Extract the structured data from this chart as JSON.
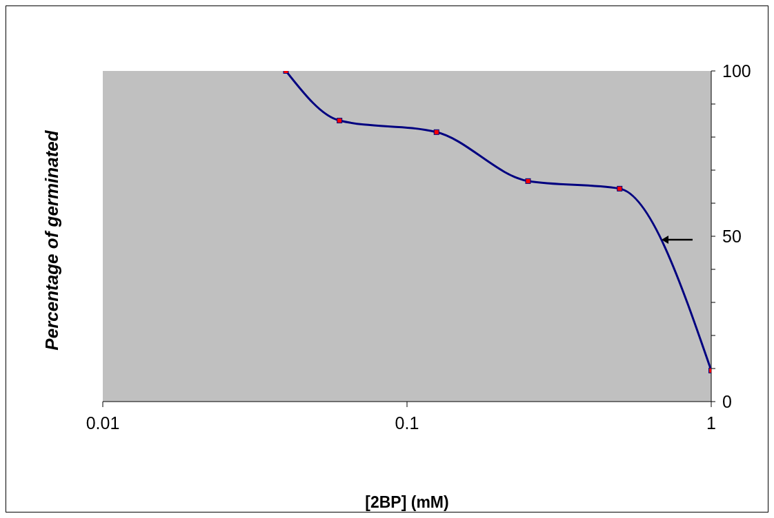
{
  "chart_data": {
    "type": "line",
    "xlabel": "[2BP] (mM)",
    "ylabel": "Percentage of germinated",
    "log": "x",
    "x": [
      0.04,
      0.06,
      0.125,
      0.25,
      0.5,
      1
    ],
    "series": [
      {
        "color": "#000080",
        "values": [
          100,
          85,
          81.5,
          66.7,
          64.4,
          9.4
        ]
      }
    ],
    "xlim": [
      0.01,
      1
    ],
    "xticks": [
      0.01,
      0.1,
      1
    ],
    "ylim": [
      0,
      100
    ],
    "yticks": [
      0,
      {
        "value": 10,
        "label": null
      },
      {
        "value": 20,
        "label": null
      },
      {
        "value": 30,
        "label": null
      },
      {
        "value": 40,
        "label": null
      },
      50,
      {
        "value": 60,
        "label": null
      },
      {
        "value": 70,
        "label": null
      },
      {
        "value": 80,
        "label": null
      },
      {
        "value": 90,
        "label": null
      },
      100
    ],
    "grid": false,
    "legend": false,
    "marker": "square",
    "line_style": "solid"
  }
}
